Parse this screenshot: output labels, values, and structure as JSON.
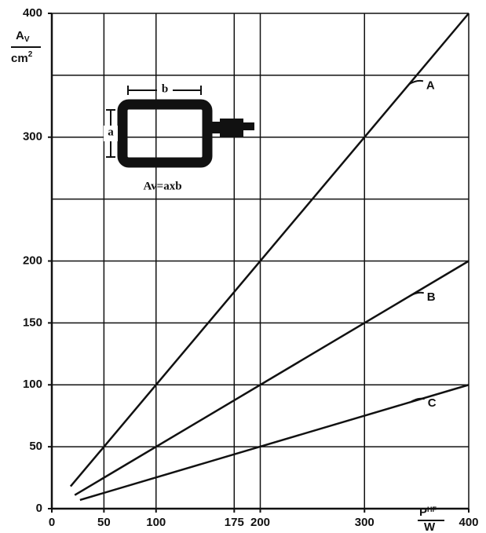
{
  "chart_data": {
    "type": "line",
    "ylabel": {
      "main": "A",
      "sub": "V",
      "den": "cm",
      "sup": "2"
    },
    "xlabel": {
      "main": "P",
      "sub": "HF",
      "den": "W"
    },
    "xlim": [
      0,
      400
    ],
    "ylim": [
      0,
      400
    ],
    "xticks": [
      0,
      50,
      100,
      175,
      200,
      300,
      400
    ],
    "yticks": [
      0,
      50,
      100,
      150,
      200,
      300,
      400
    ],
    "xgrid": [
      50,
      100,
      175,
      200,
      300,
      400
    ],
    "ygrid": [
      50,
      100,
      150,
      200,
      250,
      300,
      350,
      400
    ],
    "series": [
      {
        "name": "A",
        "color": "#111111",
        "x": [
          18,
          400
        ],
        "values": [
          18,
          400
        ]
      },
      {
        "name": "B",
        "color": "#111111",
        "x": [
          22,
          400
        ],
        "values": [
          11,
          200
        ]
      },
      {
        "name": "C",
        "color": "#111111",
        "x": [
          27,
          400
        ],
        "values": [
          7,
          100
        ]
      }
    ],
    "inset": {
      "width_label": "b",
      "height_label": "a",
      "formula": "Av=axb"
    }
  }
}
